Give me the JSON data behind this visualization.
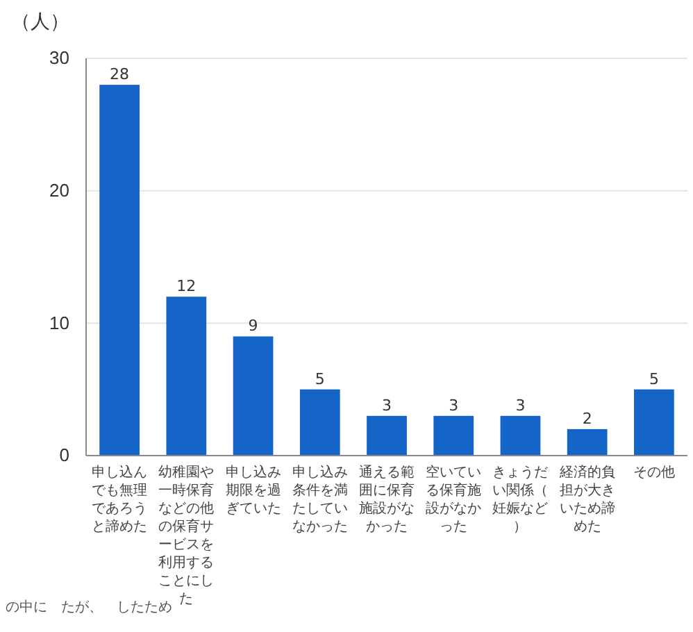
{
  "chart_data": {
    "type": "bar",
    "ylabel": "（人）",
    "categories": [
      "申し込んでも無理であろうと諦めた",
      "幼稚園や一時保育などの他の保育サービスを利用することにした",
      "申し込み期限を過ぎていた",
      "申し込み条件を満たしていなかった",
      "通える範囲に保育施設がなかった",
      "空いている保育施設がなかった",
      "きょうだい関係（妊娠など）",
      "経済的負担が大きいため諦めた",
      "その他"
    ],
    "values": [
      28,
      12,
      9,
      5,
      3,
      3,
      3,
      2,
      5
    ],
    "color": "#1565c8",
    "ylim": [
      0,
      30
    ],
    "yticks": [
      0,
      10,
      20,
      30
    ],
    "grid": "y",
    "data_labels": true,
    "annotations": [
      "の中に　たが、　したため"
    ]
  }
}
